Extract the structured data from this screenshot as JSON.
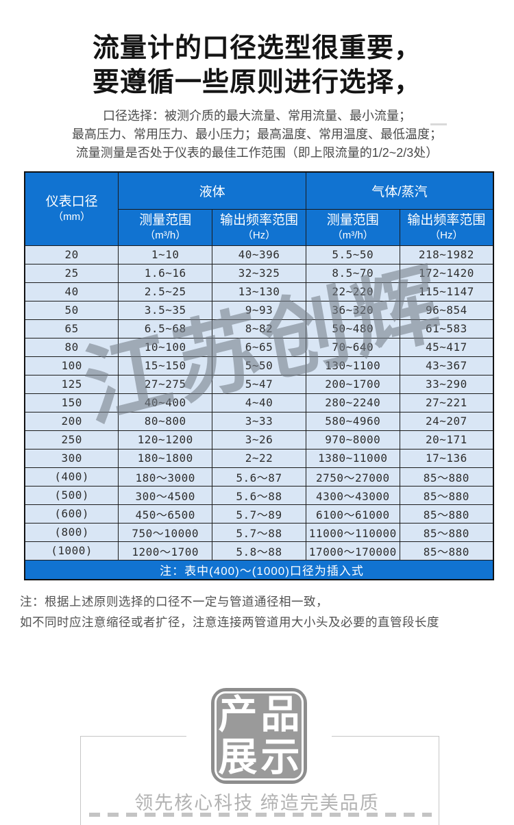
{
  "title": {
    "line1": "流量计的口径选型很重要，",
    "line2": "要遵循一些原则进行选择，"
  },
  "subtitle": {
    "line1": "口径选择：被测介质的最大流量、常用流量、最小流量；",
    "line2": "最高压力、常用压力、最小压力；最高温度、常用温度、最低温度；",
    "line3": "流量测量是否处于仪表的最佳工作范围（即上限流量的1/2~2/3处）"
  },
  "table": {
    "col1_header": {
      "line1": "仪表口径",
      "line2": "（mm）"
    },
    "group_liquid": "液体",
    "group_gas": "气体/蒸汽",
    "sub_headers": {
      "measure": "测量范围",
      "measure_unit": "（m³/h）",
      "freq": "输出频率范围",
      "freq_unit": "（Hz）"
    },
    "columns": [
      "仪表口径（mm）",
      "液体 测量范围（m³/h）",
      "液体 输出频率范围（Hz）",
      "气体/蒸汽 测量范围（m³/h）",
      "气体/蒸汽 输出频率范围（Hz）"
    ],
    "rows": [
      [
        "20",
        "1~10",
        "40~396",
        "5.5~50",
        "218~1982"
      ],
      [
        "25",
        "1.6~16",
        "32~325",
        "8.5~70",
        "172~1420"
      ],
      [
        "40",
        "2.5~25",
        "13~130",
        "22~220",
        "115~1147"
      ],
      [
        "50",
        "3.5~35",
        "9~93",
        "36~320",
        "96~854"
      ],
      [
        "65",
        "6.5~68",
        "8~82",
        "50~480",
        "61~583"
      ],
      [
        "80",
        "10~100",
        "6~65",
        "70~640",
        "45~417"
      ],
      [
        "100",
        "15~150",
        "5~50",
        "130~1100",
        "43~367"
      ],
      [
        "125",
        "27~275",
        "5~47",
        "200~1700",
        "33~290"
      ],
      [
        "150",
        "40~400",
        "4~40",
        "280~2240",
        "27~221"
      ],
      [
        "200",
        "80~800",
        "3~33",
        "580~4960",
        "24~207"
      ],
      [
        "250",
        "120~1200",
        "3~26",
        "970~8000",
        "20~171"
      ],
      [
        "300",
        "180~1800",
        "2~22",
        "1380~11000",
        "17~136"
      ],
      [
        "(400)",
        "180～3000",
        "5.6～87",
        "2750～27000",
        "85～880"
      ],
      [
        "(500)",
        "300～4500",
        "5.6～88",
        "4300～43000",
        "85～880"
      ],
      [
        "(600)",
        "450～6500",
        "5.7～89",
        "6100～61000",
        "85～880"
      ],
      [
        "(800)",
        "750～10000",
        "5.7～88",
        "11000～110000",
        "85～880"
      ],
      [
        "(1000)",
        "1200～1700",
        "5.8～88",
        "17000～170000",
        "85～880"
      ]
    ],
    "footnote": "注：表中(400)～(1000)口径为插入式"
  },
  "watermark": "江苏创辉",
  "notes": {
    "line1": "注：根据上述原则选择的口径不一定与管道通径相一致，",
    "line2": "如不同时应注意缩径或者扩径，注意连接两管道用大小头及必要的直管段长度"
  },
  "stamp": {
    "chars": [
      "产",
      "品",
      "展",
      "示"
    ]
  },
  "footer_slogan": "领先核心科技 缔造完美品质",
  "colors": {
    "header_blue": "#1173d1",
    "row_bg": "#d9e6f5",
    "border_dark": "#1b1b1b",
    "stamp_gray": "#9a9a9a",
    "slogan_gray": "#b2b2b2"
  }
}
